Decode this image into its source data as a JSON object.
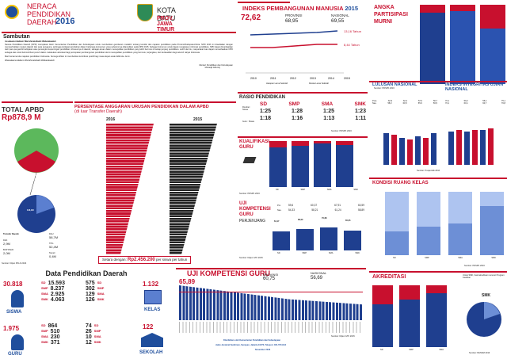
{
  "header": {
    "title_line1": "NERACA",
    "title_line2": "PENDIDIKAN",
    "title_line3": "DAERAH",
    "title_year": "2016",
    "region_line1": "KOTA BATU",
    "region_line2": "PROV. JAWA TIMUR"
  },
  "sambutan": {
    "title": "Sambutan",
    "greeting": "Assalaamu'alaikum Warrahmatullaahi Wabarakaatuh",
    "p1": "Neraca Pendidikan Daerah (NPD) merupakan Aktor Kementerian Pendidikan dan Kebudayaan untuk memberikan gambaran mutakhir tentang kondisi dan capaian pendidikan pada Provinsi/Kabupaten/Kota. NPD 2016 ini disediakan dengan memperhatikan muatan daerah dan para pengguna, sehingga terdapat perubahan dalam beberapa komponen yang sebelumnya ditampilkan pada NPD 2015. Sebagai instrumen untuk dapat mengakses informasi pendidikan, NPD dapat dimanfaatkan oleh para pengambil kebijakan atau pemangku kepentingan pendidikan, khususnya di daerah, sebagai acuan dalam mewujudkan pendidikan yang lebih bermutu di setiap jenjang pendidikan. Lebih dari itu, masyarakat luas dapat memanfaatkan NPD sebagai alat untuk berkontribusi penuh dalam melakukan advokasi bagi percepatan pembangunan pendidikan demi mewujudkan pendidikan yang bermutu, terjangkau, dan berkeadilan bagi seluruh rakyat Indonesia.",
    "p2": "Mari bersama kita majukan pendidikan Indonesia. Semoga ikhtiar ini memberikan kontribusi positif bagi masa depan anak didik kita. Amin.",
    "closing": "Wassalaamu'alaikum Warrahmatullaahi Wabarakaatuh",
    "sign1": "Menteri Pendidikan dan Kebudayaan",
    "sign2": "Muhadjir Effendy"
  },
  "ipm": {
    "title": "INDEKS PEMBANGUNAN MANUSIA",
    "year": "2015",
    "value": "72,62",
    "prov_label": "PROVINSI",
    "prov_value": "68,95",
    "nas_label": "NASIONAL",
    "nas_value": "69,55",
    "right_top": "13,16 Tahun",
    "right_bottom": "8,44 Tahun",
    "legend1": "Harapan Lama Sekolah",
    "legend2": "Rerata Lama Sekolah"
  },
  "apm": {
    "title1": "ANGKA",
    "title2": "PARTISIPASI",
    "title3": "MURNI",
    "source": "Sumber: PDSPK 2016"
  },
  "total_apbd": {
    "title": "TOTAL APBD",
    "value": "Rp878,9 M",
    "dana_label": "Dana Daerah",
    "dana_value": "76,9M",
    "transfer_label": "Transfer Daerah",
    "transfer_value": "116,1M",
    "items": [
      {
        "label": "DAK",
        "value": "2,9M"
      },
      {
        "label": "BOP PAUD",
        "value": "2,0M"
      }
    ],
    "items_right": [
      {
        "label": "DAU",
        "value": "58,7M"
      },
      {
        "label": "TPG",
        "value": "52,4M"
      },
      {
        "label": "Tamsil",
        "value": "0,4M"
      }
    ],
    "source": "Sumber: Ditjen PKLN 2016"
  },
  "persentase": {
    "title": "PERSENTASE ANGGARAN URUSAN PENDIDIKAN DALAM APBD",
    "subtitle": "(di luar Transfer Daerah)",
    "year_left": "2016",
    "year_right": "2015",
    "setara_label": "Setara dengan:",
    "setara_value": "Rp2.456.200",
    "setara_suffix": "per siswa per tahun"
  },
  "rasio": {
    "title": "RASIO PENDIDIKAN",
    "row1": "Rombel : Siswa",
    "row2": "Guru : Siswa",
    "levels": [
      "SD",
      "SMP",
      "SMA",
      "SMK"
    ],
    "rombel": [
      "1:25",
      "1:28",
      "1:25",
      "1:23"
    ],
    "guru": [
      "1:18",
      "1:16",
      "1:13",
      "1:11"
    ],
    "source": "Sumber: PDSPK 2016"
  },
  "lulusan": {
    "title": "LULUSAN NASIONAL",
    "row1": "Pres.",
    "row2": "Nas.",
    "vals1": [
      "62,9",
      "62,2",
      "57,0",
      "56,7"
    ],
    "vals2": [
      "58,3",
      "60,5",
      "55,6",
      "56,5"
    ]
  },
  "integritas": {
    "title": "INDEKS INTEGRITAS UJIAN NASIONAL",
    "vals1": [
      "70,1",
      "59,2",
      "55,4",
      "75,1"
    ],
    "vals2": [
      "70,1",
      "60,1",
      "60,7",
      "76,8"
    ],
    "source": "Sumber: Puspendik 2016"
  },
  "kualifikasi": {
    "title1": "KUALIFIKASI",
    "title2": "GURU",
    "source": "Sumber: PDSPK 2016",
    "levels": [
      "SD",
      "SMP",
      "SMA",
      "SMK"
    ]
  },
  "ukg": {
    "title1": "UJI",
    "title2": "KOMPETENSI",
    "title3": "GURU",
    "sub": "PERJENJANG",
    "row1": "Pro.",
    "row2": "Nas.",
    "vals1": [
      "59,6",
      "60,37",
      "67,91",
      "60,59"
    ],
    "vals2": [
      "54,33",
      "58,21",
      "61,24",
      "58,89"
    ],
    "bars": [
      "64,17",
      "68,00",
      "70,68",
      "65,05"
    ],
    "levels": [
      "SD",
      "SMP",
      "SMA",
      "SMK"
    ],
    "source": "Sumber: Ditjen GTK 2015"
  },
  "kondisi": {
    "title": "KONDISI RUANG KELAS",
    "levels": [
      "SD",
      "SMP",
      "SMA",
      "SMK"
    ],
    "source": "Sumber: PDSPK 2016"
  },
  "data_pendidikan": {
    "title": "Data Pendidikan Daerah",
    "siswa_total": "30.818",
    "siswa_label": "SISWA",
    "siswa_rows": [
      {
        "level": "SD",
        "value": "15.593"
      },
      {
        "level": "SMP",
        "value": "8.237"
      },
      {
        "level": "SMA",
        "value": "2.925"
      },
      {
        "level": "SMK",
        "value": "4.063"
      }
    ],
    "guru_total": "1.975",
    "guru_label": "GURU",
    "guru_rows": [
      {
        "level": "SD",
        "value": "864"
      },
      {
        "level": "SMP",
        "value": "510"
      },
      {
        "level": "SMA",
        "value": "230"
      },
      {
        "level": "SMK",
        "value": "371"
      }
    ],
    "kelas_total": "1.132",
    "kelas_label": "KELAS",
    "kelas_rows": [
      {
        "value": "575",
        "level": "SD"
      },
      {
        "value": "302",
        "level": "SMP"
      },
      {
        "value": "129",
        "level": "SMA"
      },
      {
        "value": "126",
        "level": "SMK"
      }
    ],
    "sekolah_total": "122",
    "sekolah_label": "SEKOLAH",
    "sekolah_rows": [
      {
        "value": "74",
        "level": "SD"
      },
      {
        "value": "26",
        "level": "SMP"
      },
      {
        "value": "10",
        "level": "SMA"
      },
      {
        "value": "12",
        "level": "SMK"
      }
    ]
  },
  "ukg_kab": {
    "title": "UJI KOMPETENSI GURU",
    "value": "65,89",
    "prov_label": "PROVINSI",
    "prov_value": "60,75",
    "nas_label": "NASIONAL",
    "nas_value": "56,69",
    "footer1": "Diterbitkan oleh Kementerian Pendidikan dan Kebudayaan",
    "footer2": "Jalan Jenderal Sudirman, Senayan, Jakarta 10270, Telepon: 021-5711144",
    "footer3": "November 2016",
    "source": "Sumber: Ditjen GTK 2015"
  },
  "akreditasi": {
    "title": "AKREDITASI",
    "note": "Untuk SMK, hasil akreditasi menurut Program Keahlian",
    "smk_label": "SMK",
    "source": "Sumber: BANSM 2016",
    "levels": [
      "SD",
      "SMP",
      "SMA"
    ]
  },
  "colors": {
    "red": "#c8102e",
    "blue": "#1f4e9c",
    "darkblue": "#1f3f8f",
    "green": "#5cb85c"
  }
}
